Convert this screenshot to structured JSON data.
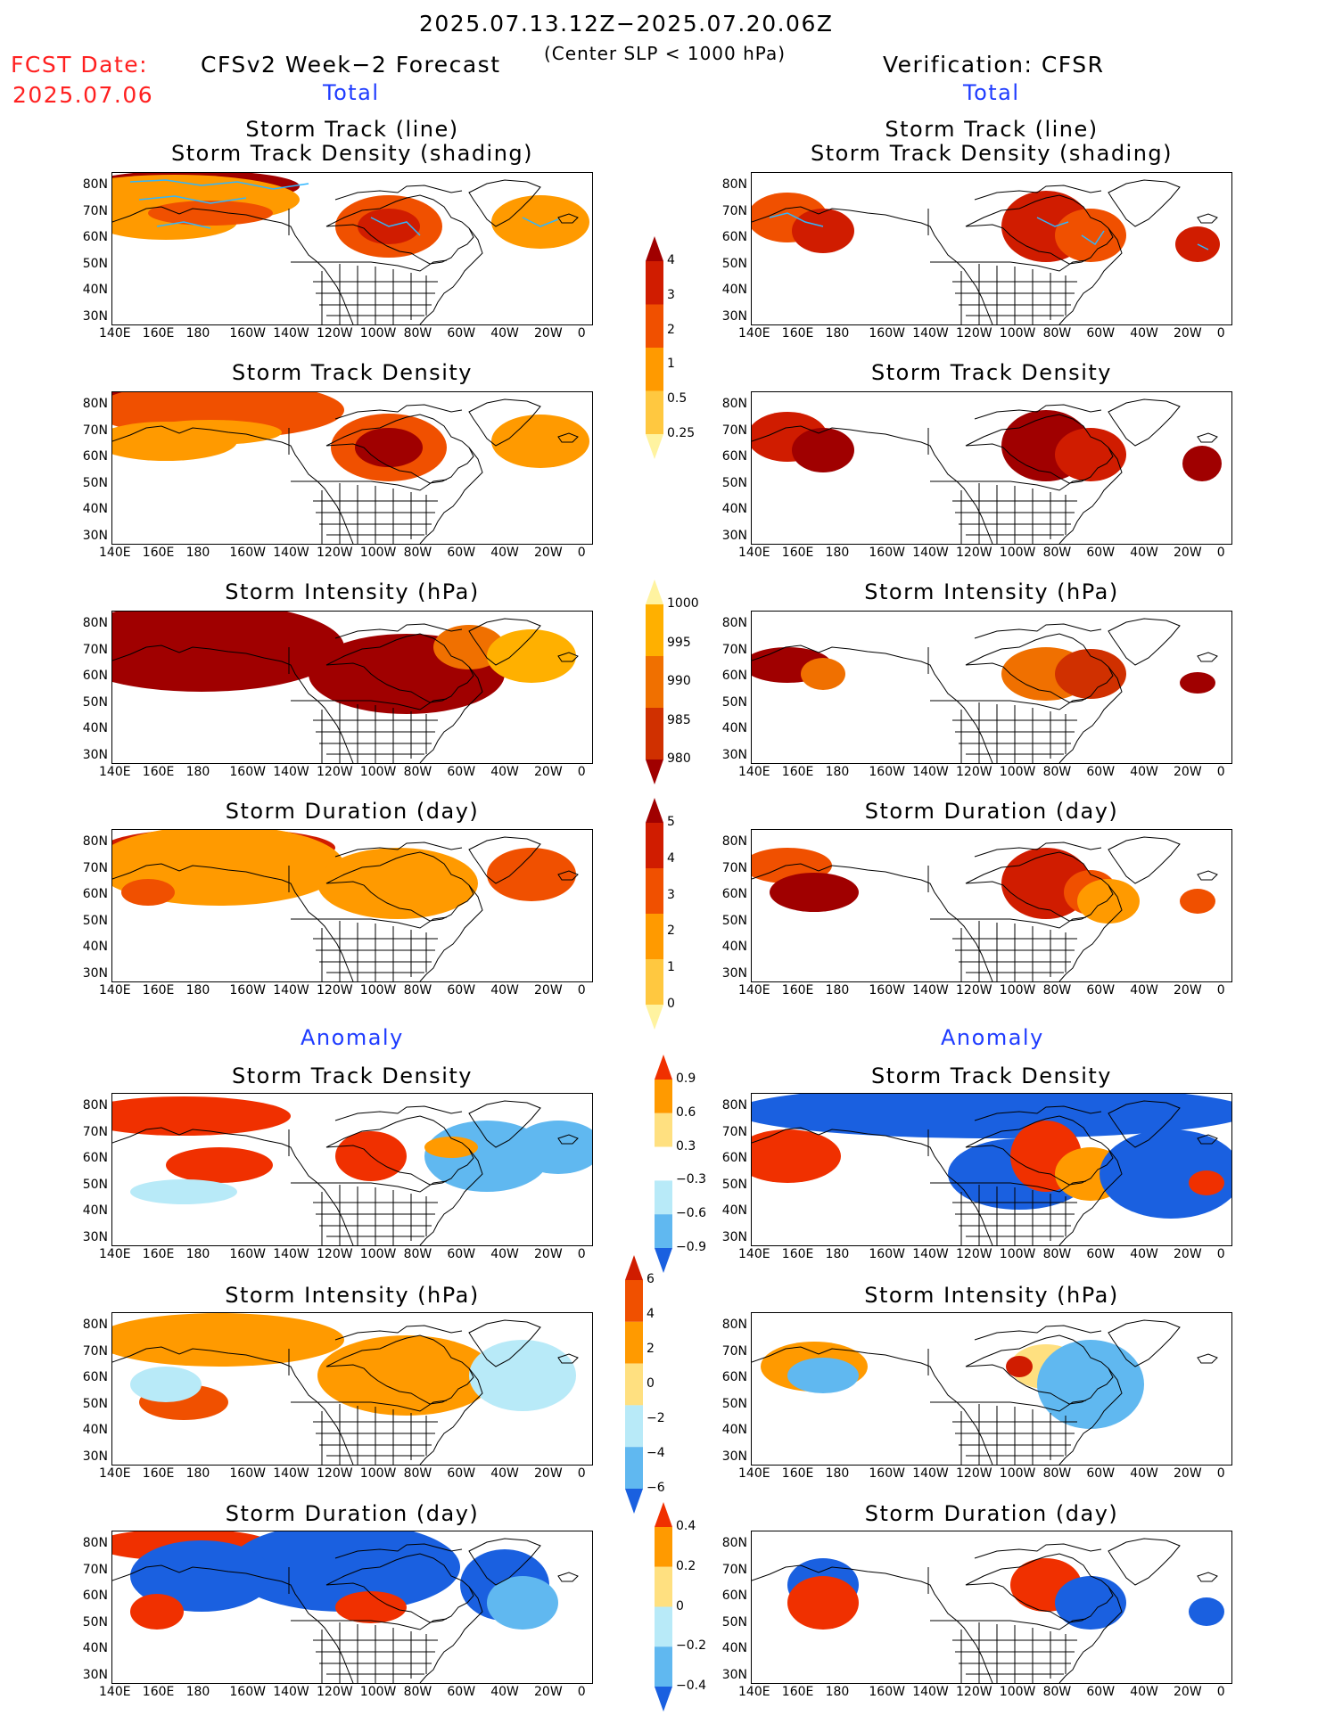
{
  "header": {
    "date_range": "2025.07.13.12Z−2025.07.20.06Z",
    "subtitle": "(Center SLP < 1000 hPa)",
    "fcst_label": "FCST Date:",
    "fcst_date": "2025.07.06",
    "left_title": "CFSv2 Week−2 Forecast",
    "right_title": "Verification: CFSR"
  },
  "sections": {
    "total": "Total",
    "anomaly": "Anomaly"
  },
  "panel_titles": {
    "track_line": "Storm Track (line)",
    "track_shading": "Storm Track Density (shading)",
    "track_density": "Storm Track Density",
    "intensity": "Storm Intensity (hPa)",
    "duration": "Storm Duration (day)"
  },
  "axes": {
    "lat_labels": [
      "80N",
      "70N",
      "60N",
      "50N",
      "40N",
      "30N"
    ],
    "lon_labels": [
      "140E",
      "160E",
      "180",
      "160W",
      "140W",
      "120W",
      "100W",
      "80W",
      "60W",
      "40W",
      "20W",
      "0"
    ]
  },
  "colorbars": {
    "density_total": {
      "labels": [
        "4",
        "3",
        "2",
        "1",
        "0.5",
        "0.25"
      ],
      "colors": [
        "#a00000",
        "#d01c00",
        "#f05000",
        "#ff9a00",
        "#ffc840",
        "#fff3a0"
      ]
    },
    "intensity_total": {
      "labels": [
        "1000",
        "995",
        "990",
        "985",
        "980"
      ],
      "colors": [
        "#fff3a0",
        "#ffb000",
        "#f07000",
        "#d03000",
        "#a00000"
      ]
    },
    "duration_total": {
      "labels": [
        "5",
        "4",
        "3",
        "2",
        "1",
        "0"
      ],
      "colors": [
        "#a00000",
        "#d01c00",
        "#f05000",
        "#ff9a00",
        "#ffc840",
        "#fff3a0"
      ]
    },
    "density_anom": {
      "labels": [
        "0.9",
        "0.6",
        "0.3",
        "−0.3",
        "−0.6",
        "−0.9"
      ],
      "colors": [
        "#f03000",
        "#ff9a00",
        "#ffe080",
        "#ffffff",
        "#b8eaf8",
        "#60b8f0",
        "#1a60e0"
      ]
    },
    "intensity_anom": {
      "labels": [
        "6",
        "4",
        "2",
        "0",
        "−2",
        "−4",
        "−6"
      ],
      "colors": [
        "#d01c00",
        "#f05000",
        "#ff9a00",
        "#ffe080",
        "#b8eaf8",
        "#60b8f0",
        "#1a60e0"
      ]
    },
    "duration_anom": {
      "labels": [
        "0.4",
        "0.2",
        "0",
        "−0.2",
        "−0.4"
      ],
      "colors": [
        "#f03000",
        "#ff9a00",
        "#ffe080",
        "#b8eaf8",
        "#60b8f0",
        "#1a60e0"
      ]
    }
  },
  "colors": {
    "coast": "#000000",
    "track": "#2fb6ff"
  }
}
